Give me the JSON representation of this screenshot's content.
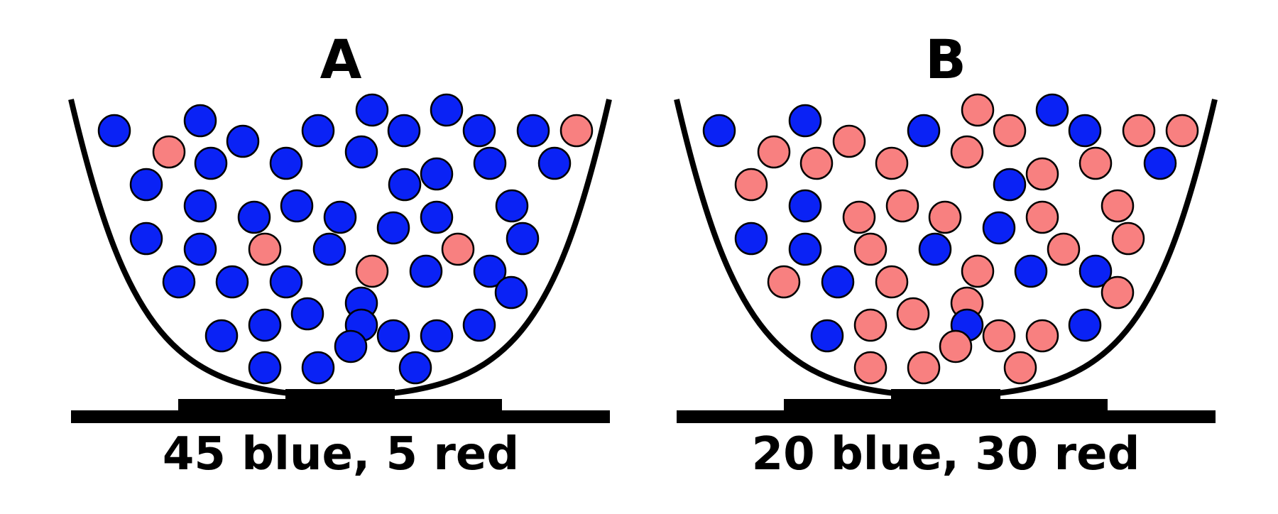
{
  "colors": {
    "blue": "#0a22f5",
    "red": "#f88080",
    "ink": "#000000"
  },
  "panels": [
    {
      "id": "A",
      "title": "A",
      "caption": "45 blue, 5 red",
      "counts": {
        "blue": 45,
        "red": 5
      }
    },
    {
      "id": "B",
      "title": "B",
      "caption": "20 blue, 30 red",
      "counts": {
        "blue": 20,
        "red": 30
      }
    }
  ]
}
